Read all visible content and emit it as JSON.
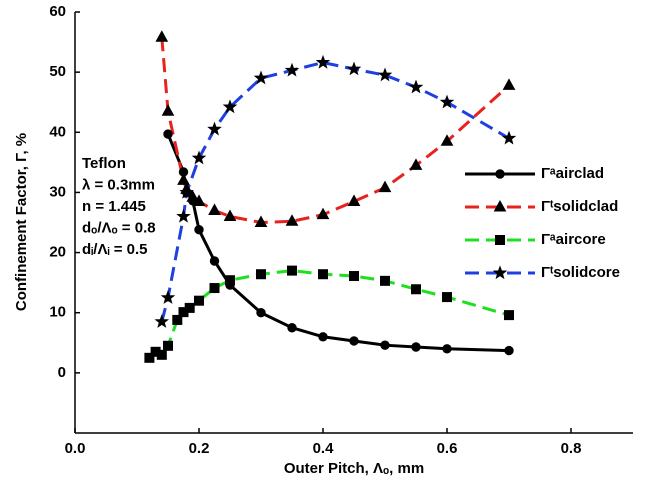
{
  "chart_data": {
    "type": "line",
    "x_label": "Outer Pitch, Λₒ, mm",
    "y_label": "Confinement Factor, Γ, %",
    "annotations": [
      "Teflon",
      "λ = 0.3mm",
      "n = 1.445",
      "dₒ/Λₒ = 0.8",
      "dᵢ/Λᵢ = 0.5"
    ],
    "xlim": [
      0,
      0.9
    ],
    "xticks": [
      {
        "value": 0,
        "label": "0.0"
      },
      0.2,
      0.4,
      0.6,
      0.8
    ],
    "ylim": [
      -10,
      60
    ],
    "yticks": [
      0,
      10,
      20,
      30,
      40,
      50,
      60
    ],
    "legend": "right",
    "series": [
      {
        "name": "Γᵃairclad",
        "color": "#000000",
        "dash": "solid",
        "marker": "circle",
        "x": [
          0.15,
          0.175,
          0.18,
          0.19,
          0.2,
          0.225,
          0.25,
          0.3,
          0.35,
          0.4,
          0.45,
          0.5,
          0.55,
          0.6,
          0.7
        ],
        "values": [
          39.7,
          33.4,
          30,
          28.6,
          23.8,
          18.6,
          14.6,
          10,
          7.5,
          6,
          5.3,
          4.6,
          4.3,
          4,
          3.7
        ]
      },
      {
        "name": "Γᵗsolidclad",
        "color": "#e8231f",
        "dash": "dashed",
        "marker": "triangle",
        "x": [
          0.14,
          0.15,
          0.175,
          0.18,
          0.19,
          0.2,
          0.225,
          0.25,
          0.3,
          0.35,
          0.4,
          0.45,
          0.5,
          0.55,
          0.6,
          0.7
        ],
        "values": [
          55.8,
          43.5,
          32,
          30.5,
          29.2,
          28.5,
          27,
          26,
          25,
          25.2,
          26.3,
          28.5,
          30.8,
          34.5,
          38.5,
          47.8
        ]
      },
      {
        "name": "Γᵃaircore",
        "color": "#1ee01e",
        "dash": "dashed",
        "marker": "square",
        "x": [
          0.12,
          0.13,
          0.14,
          0.15,
          0.165,
          0.175,
          0.185,
          0.2,
          0.225,
          0.25,
          0.3,
          0.35,
          0.4,
          0.45,
          0.5,
          0.55,
          0.6,
          0.7
        ],
        "values": [
          2.5,
          3.5,
          3,
          4.5,
          8.8,
          10.1,
          10.8,
          12,
          14.1,
          15.4,
          16.4,
          17,
          16.4,
          16.1,
          15.3,
          13.9,
          12.6,
          9.6
        ]
      },
      {
        "name": "Γᵗsolidcore",
        "color": "#1f3fe0",
        "dash": "dashed",
        "marker": "star",
        "x": [
          0.14,
          0.15,
          0.175,
          0.18,
          0.2,
          0.225,
          0.25,
          0.3,
          0.35,
          0.4,
          0.45,
          0.5,
          0.55,
          0.6,
          0.7
        ],
        "values": [
          8.5,
          12.5,
          26,
          30,
          35.7,
          40.5,
          44.2,
          49,
          50.3,
          51.6,
          50.5,
          49.5,
          47.5,
          45,
          39
        ]
      }
    ]
  }
}
